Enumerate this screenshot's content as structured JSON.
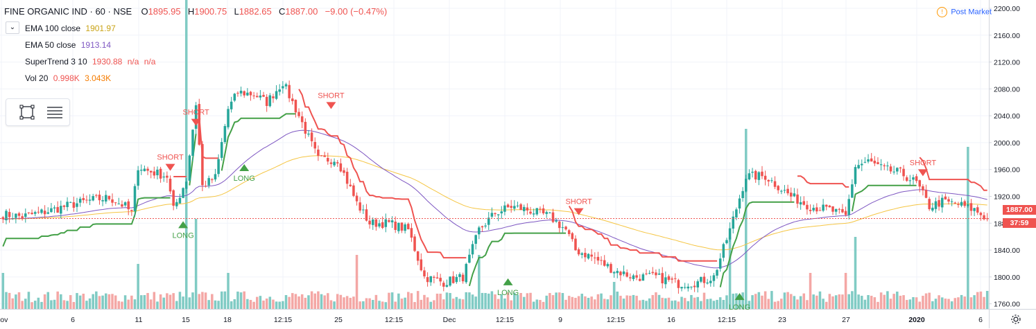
{
  "header": {
    "symbol": "FINE ORGANIC IND · 60 · NSE",
    "open_label": "O",
    "open": "1895.95",
    "high_label": "H",
    "high": "1900.75",
    "low_label": "L",
    "low": "1882.65",
    "close_label": "C",
    "close": "1887.00",
    "change": "−9.00 (−0.47%)"
  },
  "indicators": [
    {
      "name": "EMA 100 close",
      "value": "1901.97",
      "color": "#c9a316"
    },
    {
      "name": "EMA 50 close",
      "value": "1913.14",
      "color": "#7e57c2"
    },
    {
      "name": "SuperTrend 3 10",
      "value": "1930.88",
      "extra": "n/a",
      "extra2": "n/a",
      "color": "#ef5350"
    },
    {
      "name": "Vol 20",
      "value": "0.998K",
      "extra": "3.043K",
      "color": "#ef5350",
      "color2": "#f57c00"
    }
  ],
  "status": {
    "label": "Post Market",
    "icon": "alert-circle-icon"
  },
  "price_tags": {
    "last_price": "1887.00",
    "countdown": "37:59",
    "color": "#ef5350"
  },
  "icons": {
    "collapse": "chevron-down-icon",
    "toolbox_left": "rectangle-select-icon",
    "toolbox_right": "menu-lines-icon",
    "settings": "gear-icon"
  },
  "colors": {
    "up": "#26a69a",
    "down": "#ef5350",
    "ema100": "#f5c542",
    "ema50": "#7e57c2",
    "st_up": "#43a047",
    "st_down": "#ef5350",
    "vol_up": "#80cbc4",
    "vol_down": "#f4a7a5"
  },
  "chart_data": {
    "type": "candlestick",
    "title": "FINE ORGANIC IND · 60 · NSE",
    "y_axis": {
      "ticks": [
        "2200.00",
        "2160.00",
        "2120.00",
        "2080.00",
        "2040.00",
        "2000.00",
        "1960.00",
        "1920.00",
        "1880.00",
        "1840.00",
        "1800.00",
        "1760.00"
      ],
      "range": [
        1740,
        2200
      ]
    },
    "x_axis": {
      "ticks": [
        "Nov",
        "6",
        "11",
        "15",
        "18",
        "12:15",
        "25",
        "12:15",
        "Dec",
        "12:15",
        "9",
        "12:15",
        "16",
        "12:15",
        "23",
        "27",
        "2020",
        "6"
      ]
    },
    "last_price": 1887.0,
    "series_close_anchors": [
      [
        0,
        1893
      ],
      [
        6,
        1890
      ],
      [
        14,
        1898
      ],
      [
        20,
        1906
      ],
      [
        27,
        1914
      ],
      [
        33,
        1918
      ],
      [
        38,
        1905
      ],
      [
        40,
        1895
      ],
      [
        42,
        1965
      ],
      [
        45,
        1958
      ],
      [
        51,
        1950
      ],
      [
        53,
        1900
      ],
      [
        57,
        1945
      ],
      [
        60,
        2058
      ],
      [
        62,
        1935
      ],
      [
        66,
        1948
      ],
      [
        70,
        2050
      ],
      [
        73,
        2075
      ],
      [
        78,
        2072
      ],
      [
        82,
        2060
      ],
      [
        87,
        2090
      ],
      [
        92,
        2040
      ],
      [
        98,
        1975
      ],
      [
        104,
        1975
      ],
      [
        110,
        1910
      ],
      [
        114,
        1880
      ],
      [
        120,
        1880
      ],
      [
        126,
        1870
      ],
      [
        131,
        1800
      ],
      [
        137,
        1792
      ],
      [
        143,
        1800
      ],
      [
        148,
        1870
      ],
      [
        153,
        1895
      ],
      [
        158,
        1905
      ],
      [
        163,
        1900
      ],
      [
        170,
        1890
      ],
      [
        175,
        1870
      ],
      [
        178,
        1840
      ],
      [
        183,
        1830
      ],
      [
        190,
        1810
      ],
      [
        196,
        1800
      ],
      [
        203,
        1800
      ],
      [
        210,
        1790
      ],
      [
        216,
        1792
      ],
      [
        221,
        1800
      ],
      [
        226,
        1870
      ],
      [
        231,
        1950
      ],
      [
        237,
        1950
      ],
      [
        241,
        1935
      ],
      [
        245,
        1920
      ],
      [
        251,
        1905
      ],
      [
        257,
        1900
      ],
      [
        262,
        1890
      ],
      [
        265,
        1965
      ],
      [
        269,
        1972
      ],
      [
        274,
        1960
      ],
      [
        279,
        1955
      ],
      [
        284,
        1940
      ],
      [
        288,
        1905
      ],
      [
        292,
        1912
      ],
      [
        297,
        1908
      ],
      [
        302,
        1900
      ],
      [
        306,
        1887
      ]
    ],
    "volume_anchors": [
      [
        0,
        2
      ],
      [
        42,
        2.5
      ],
      [
        57,
        18
      ],
      [
        60,
        5
      ],
      [
        70,
        2
      ],
      [
        110,
        3
      ],
      [
        148,
        3
      ],
      [
        190,
        1.5
      ],
      [
        226,
        4
      ],
      [
        231,
        10
      ],
      [
        251,
        2
      ],
      [
        262,
        2
      ],
      [
        265,
        4
      ],
      [
        300,
        9
      ],
      [
        306,
        1
      ]
    ],
    "signals": [
      {
        "label": "SHORT",
        "bar": 52,
        "price": 1958
      },
      {
        "label": "LONG",
        "bar": 56,
        "price": 1885
      },
      {
        "label": "SHORT",
        "bar": 60,
        "price": 2025
      },
      {
        "label": "LONG",
        "bar": 75,
        "price": 1970
      },
      {
        "label": "SHORT",
        "bar": 102,
        "price": 2050
      },
      {
        "label": "LONG",
        "bar": 157,
        "price": 1800
      },
      {
        "label": "SHORT",
        "bar": 179,
        "price": 1892
      },
      {
        "label": "LONG",
        "bar": 229,
        "price": 1778
      },
      {
        "label": "SHORT",
        "bar": 286,
        "price": 1950
      }
    ]
  }
}
